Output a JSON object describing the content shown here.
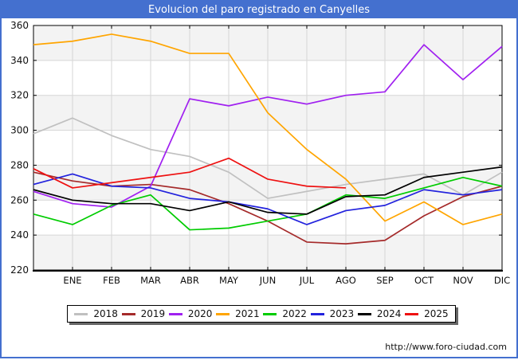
{
  "window": {
    "watermark": "http://www.foro-ciudad.com"
  },
  "chart_data": {
    "type": "line",
    "title": "Evolucion del paro registrado en Canyelles",
    "categories": [
      "ENE",
      "FEB",
      "MAR",
      "ABR",
      "MAY",
      "JUN",
      "JUL",
      "AGO",
      "SEP",
      "OCT",
      "NOV",
      "DIC"
    ],
    "ylim": [
      220,
      360
    ],
    "y_ticks": [
      360,
      340,
      320,
      300,
      280,
      260,
      240,
      220
    ],
    "grid": true,
    "legend_position": "bottom",
    "edge_start_included": true,
    "series": [
      {
        "name": "2018",
        "color": "#c0c0c0",
        "start": 298,
        "values": [
          307,
          297,
          289,
          285,
          276,
          261,
          265,
          269,
          272,
          275,
          263,
          276
        ]
      },
      {
        "name": "2019",
        "color": "#a52a2a",
        "start": 276,
        "values": [
          271,
          268,
          269,
          266,
          258,
          248,
          236,
          235,
          237,
          251,
          262,
          268
        ]
      },
      {
        "name": "2020",
        "color": "#a020f0",
        "start": 265,
        "values": [
          258,
          256,
          268,
          318,
          314,
          319,
          315,
          320,
          322,
          349,
          329,
          348
        ]
      },
      {
        "name": "2021",
        "color": "#ffa500",
        "start": 349,
        "values": [
          351,
          355,
          351,
          344,
          344,
          310,
          289,
          272,
          248,
          259,
          246,
          252
        ]
      },
      {
        "name": "2022",
        "color": "#00cc00",
        "start": 252,
        "values": [
          246,
          257,
          263,
          243,
          244,
          248,
          252,
          263,
          261,
          267,
          273,
          268
        ]
      },
      {
        "name": "2023",
        "color": "#2222dd",
        "start": 269,
        "values": [
          275,
          268,
          267,
          261,
          259,
          255,
          246,
          254,
          257,
          266,
          263,
          266
        ]
      },
      {
        "name": "2024",
        "color": "#000000",
        "start": 266,
        "values": [
          260,
          258,
          258,
          254,
          259,
          253,
          252,
          262,
          263,
          273,
          276,
          279
        ]
      },
      {
        "name": "2025",
        "color": "#ee1111",
        "start": 278,
        "values": [
          267,
          270,
          273,
          276,
          284,
          272,
          268,
          267,
          null,
          null,
          null,
          null
        ]
      }
    ]
  }
}
